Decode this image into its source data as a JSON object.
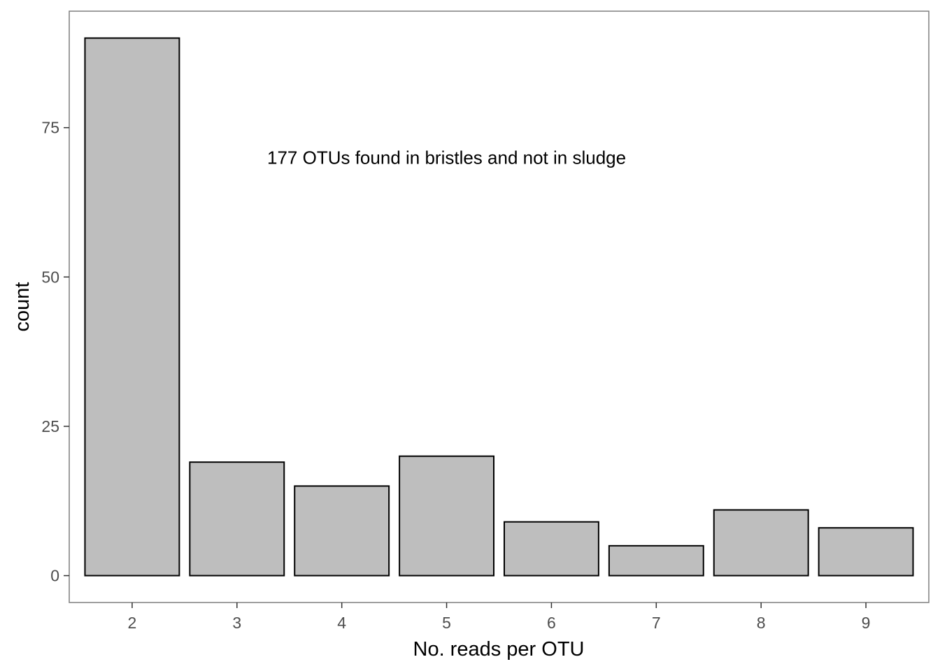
{
  "chart_data": {
    "type": "bar",
    "categories": [
      "2",
      "3",
      "4",
      "5",
      "6",
      "7",
      "8",
      "9"
    ],
    "values": [
      90,
      19,
      15,
      20,
      9,
      5,
      11,
      8
    ],
    "title": "",
    "xlabel": "No. reads per OTU",
    "ylabel": "count",
    "ylim": [
      -4.5,
      94.5
    ],
    "yticks": [
      0,
      25,
      50,
      75
    ],
    "grid": false,
    "annotation": {
      "text": "177 OTUs found in bristles and not in sludge",
      "x": 5.0,
      "y": 70
    },
    "colors": {
      "bar_fill": "#bebebe",
      "bar_stroke": "#000000",
      "panel_border": "#7f7f7f",
      "tick_label": "#4d4d4d"
    }
  }
}
